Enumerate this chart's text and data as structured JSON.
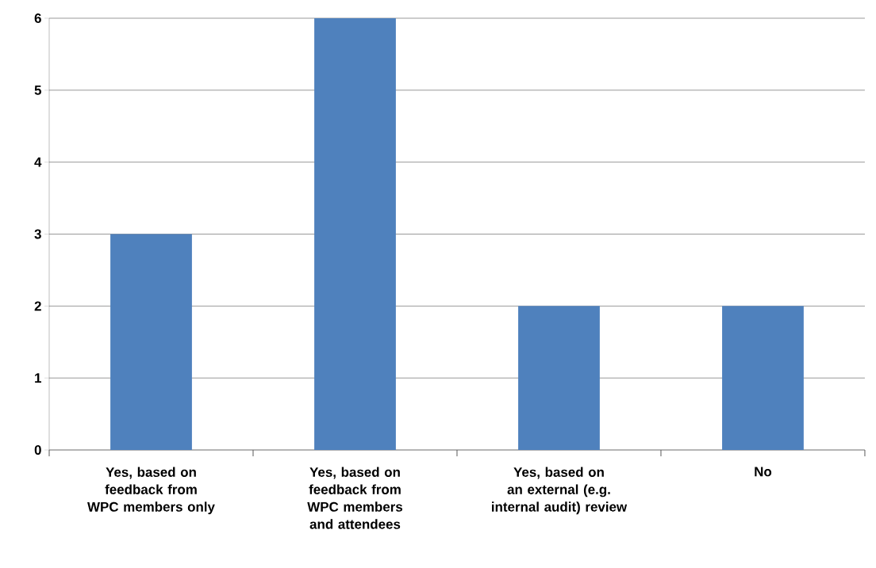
{
  "chart_data": {
    "type": "bar",
    "categories": [
      "Yes, based on feedback from WPC members only",
      "Yes, based on feedback from WPC members and attendees",
      "Yes, based on an external (e.g. internal audit) review",
      "No"
    ],
    "values": [
      3,
      6,
      2,
      2
    ],
    "color": "#4f81bd",
    "ylim": [
      0,
      6
    ],
    "yticks": [
      0,
      1,
      2,
      3,
      4,
      5,
      6
    ],
    "grid": "y"
  }
}
